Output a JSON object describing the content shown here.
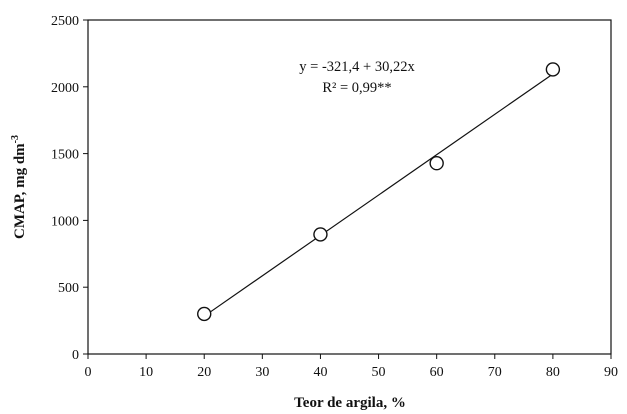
{
  "chart_data": {
    "type": "scatter",
    "xlabel": "Teor de argila, %",
    "ylabel": "CMAP, mg dm",
    "ylabel_superscript": "-3",
    "xlim": [
      0,
      90
    ],
    "ylim": [
      0,
      2500
    ],
    "x_ticks": [
      "0",
      "10",
      "20",
      "30",
      "40",
      "50",
      "60",
      "70",
      "80",
      "90"
    ],
    "y_ticks": [
      "0",
      "500",
      "1000",
      "1500",
      "2000",
      "2500"
    ],
    "grid": false,
    "series": [
      {
        "marker": "open-circle",
        "points": [
          {
            "x": 20,
            "y": 300
          },
          {
            "x": 40,
            "y": 895
          },
          {
            "x": 60,
            "y": 1428
          },
          {
            "x": 80,
            "y": 2130
          }
        ]
      }
    ],
    "fit": {
      "type": "linear",
      "intercept": -321.4,
      "slope": 30.22,
      "x_range": [
        20,
        80
      ]
    },
    "annotations": {
      "equation": "y = -321,4 + 30,22x",
      "r2": "R² = 0,99**"
    }
  }
}
